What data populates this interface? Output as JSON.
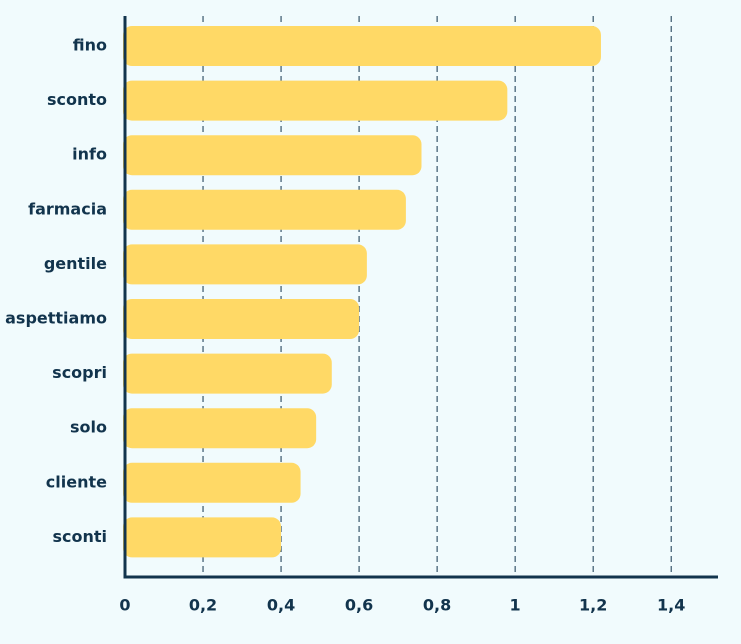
{
  "colors": {
    "background": "#f1fbfd",
    "bar": "#ffd966",
    "axis": "#12344d",
    "text": "#12344d"
  },
  "chart_data": {
    "type": "bar",
    "orientation": "horizontal",
    "categories": [
      "fino",
      "sconto",
      "info",
      "farmacia",
      "gentile",
      "aspettiamo",
      "scopri",
      "solo",
      "cliente",
      "sconti"
    ],
    "values": [
      1.22,
      0.98,
      0.76,
      0.72,
      0.62,
      0.6,
      0.53,
      0.49,
      0.45,
      0.4
    ],
    "x_ticks": [
      0,
      0.2,
      0.4,
      0.6,
      0.8,
      1,
      1.2,
      1.4
    ],
    "x_tick_labels": [
      "0",
      "0,2",
      "0,4",
      "0,6",
      "0,8",
      "1",
      "1,2",
      "1,4"
    ],
    "xlim": [
      0,
      1.52
    ],
    "grid": "vertical dashed",
    "title": "",
    "xlabel": "",
    "ylabel": ""
  }
}
